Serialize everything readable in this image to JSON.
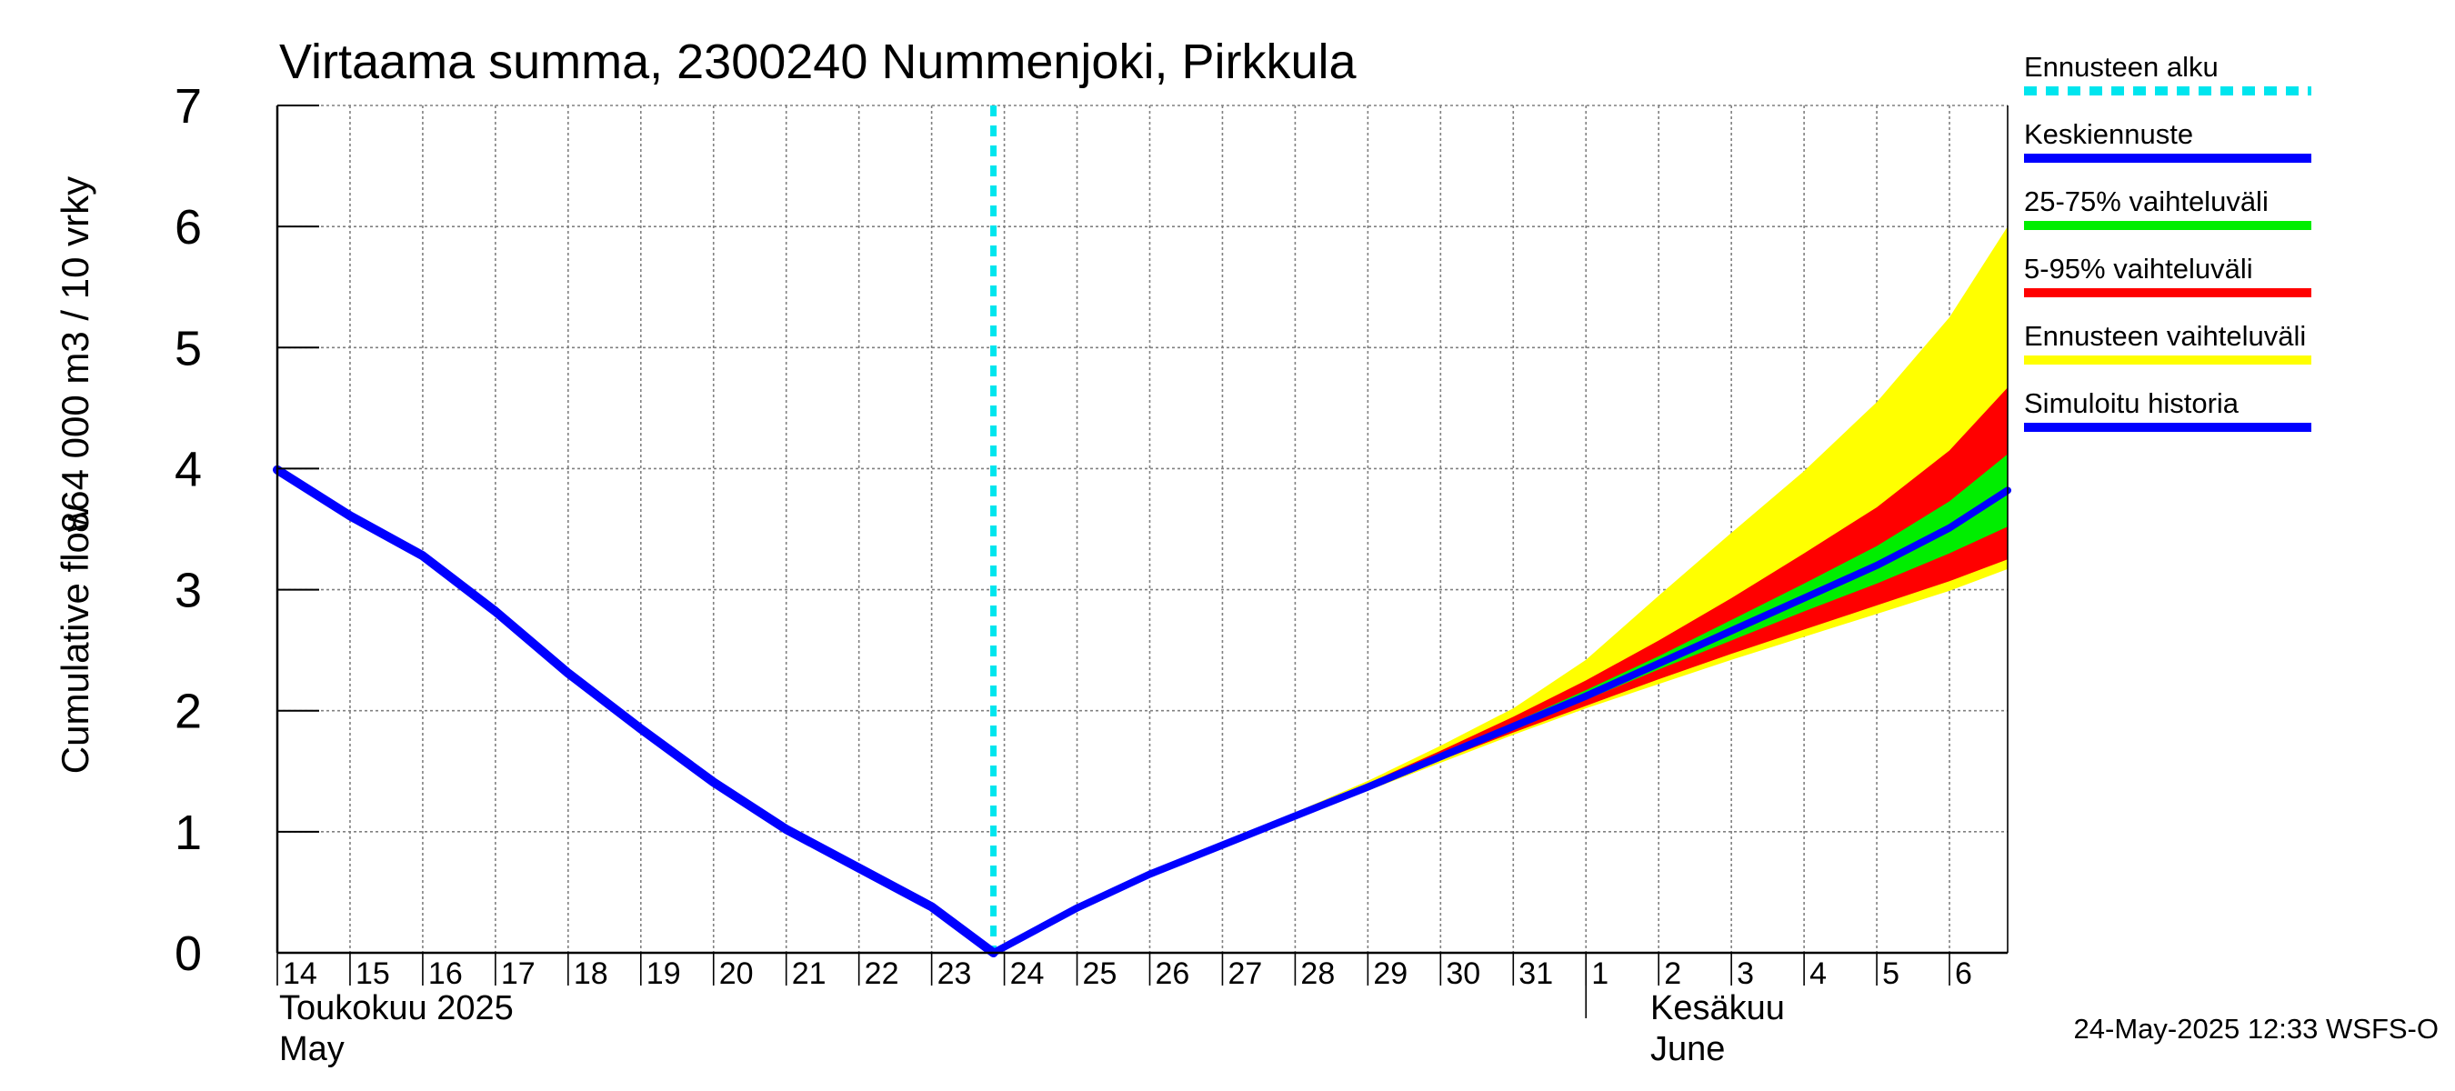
{
  "chart_data": {
    "type": "area",
    "title": "Virtaama summa, 2300240 Nummenjoki, Pirkkula",
    "ylabel_line1": "Cumulative flow",
    "ylabel_line2": "864 000 m3 / 10 vrky",
    "ylim": [
      0,
      7
    ],
    "yticks": [
      0,
      1,
      2,
      3,
      4,
      5,
      6,
      7
    ],
    "grid": true,
    "legend_position": "right",
    "x_day_ticks": [
      "14",
      "15",
      "16",
      "17",
      "18",
      "19",
      "20",
      "21",
      "22",
      "23",
      "24",
      "25",
      "26",
      "27",
      "28",
      "29",
      "30",
      "31",
      "1",
      "2",
      "3",
      "4",
      "5",
      "6"
    ],
    "x_range_days": [
      14,
      37.8
    ],
    "month_labels": {
      "may_fi": "Toukokuu  2025",
      "may_en": "May",
      "june_fi": "Kesäkuu",
      "june_en": "June"
    },
    "forecast_start_day": 23.85,
    "simulated_history": {
      "x": [
        14,
        15,
        16,
        17,
        18,
        19,
        20,
        21,
        22,
        23,
        23.85
      ],
      "y": [
        3.99,
        3.61,
        3.28,
        2.82,
        2.31,
        1.85,
        1.41,
        1.02,
        0.7,
        0.38,
        0.0
      ]
    },
    "forecast_x": [
      23.85,
      25,
      26,
      27,
      28,
      29,
      30,
      31,
      32,
      33,
      34,
      35,
      36,
      37,
      37.8
    ],
    "mean_forecast": [
      0.0,
      0.37,
      0.65,
      0.89,
      1.13,
      1.37,
      1.62,
      1.87,
      2.12,
      2.39,
      2.66,
      2.93,
      3.2,
      3.51,
      3.82
    ],
    "band_25_75": {
      "low": [
        0.0,
        0.37,
        0.65,
        0.89,
        1.12,
        1.36,
        1.61,
        1.85,
        2.09,
        2.34,
        2.58,
        2.82,
        3.05,
        3.3,
        3.52
      ],
      "high": [
        0.0,
        0.37,
        0.65,
        0.89,
        1.14,
        1.38,
        1.64,
        1.9,
        2.17,
        2.45,
        2.75,
        3.05,
        3.36,
        3.73,
        4.12
      ]
    },
    "band_5_95": {
      "low": [
        0.0,
        0.37,
        0.65,
        0.89,
        1.12,
        1.35,
        1.59,
        1.82,
        2.04,
        2.26,
        2.47,
        2.67,
        2.87,
        3.07,
        3.25
      ],
      "high": [
        0.0,
        0.37,
        0.65,
        0.89,
        1.15,
        1.4,
        1.67,
        1.95,
        2.25,
        2.58,
        2.93,
        3.3,
        3.68,
        4.15,
        4.67
      ]
    },
    "band_full": {
      "low": [
        0.0,
        0.37,
        0.65,
        0.88,
        1.11,
        1.34,
        1.57,
        1.8,
        2.02,
        2.22,
        2.42,
        2.61,
        2.8,
        2.99,
        3.17
      ],
      "high": [
        0.0,
        0.37,
        0.65,
        0.9,
        1.16,
        1.42,
        1.71,
        2.02,
        2.42,
        2.95,
        3.47,
        3.98,
        4.55,
        5.25,
        6.0
      ]
    },
    "legend": [
      {
        "key": "forecast-start",
        "label": "Ennusteen alku",
        "color": "#00e5ee",
        "style": "dashed"
      },
      {
        "key": "mean-forecast",
        "label": "Keskiennuste",
        "color": "#0000ff",
        "style": "solid"
      },
      {
        "key": "band-25-75",
        "label": "25-75% vaihteluväli",
        "color": "#00ee00",
        "style": "solid"
      },
      {
        "key": "band-5-95",
        "label": "5-95% vaihteluväli",
        "color": "#ff0000",
        "style": "solid"
      },
      {
        "key": "band-full",
        "label": "Ennusteen vaihteluväli",
        "color": "#ffff00",
        "style": "solid"
      },
      {
        "key": "simulated-history",
        "label": "Simuloitu historia",
        "color": "#0000ff",
        "style": "solid"
      }
    ],
    "colors": {
      "history": "#0000ff",
      "mean": "#0000ff",
      "band_25_75": "#00ee00",
      "band_5_95": "#ff0000",
      "band_full": "#ffff00",
      "forecast_start": "#00e5ee",
      "grid": "#808080"
    }
  },
  "footer": {
    "timestamp": "24-May-2025 12:33 WSFS-O"
  }
}
